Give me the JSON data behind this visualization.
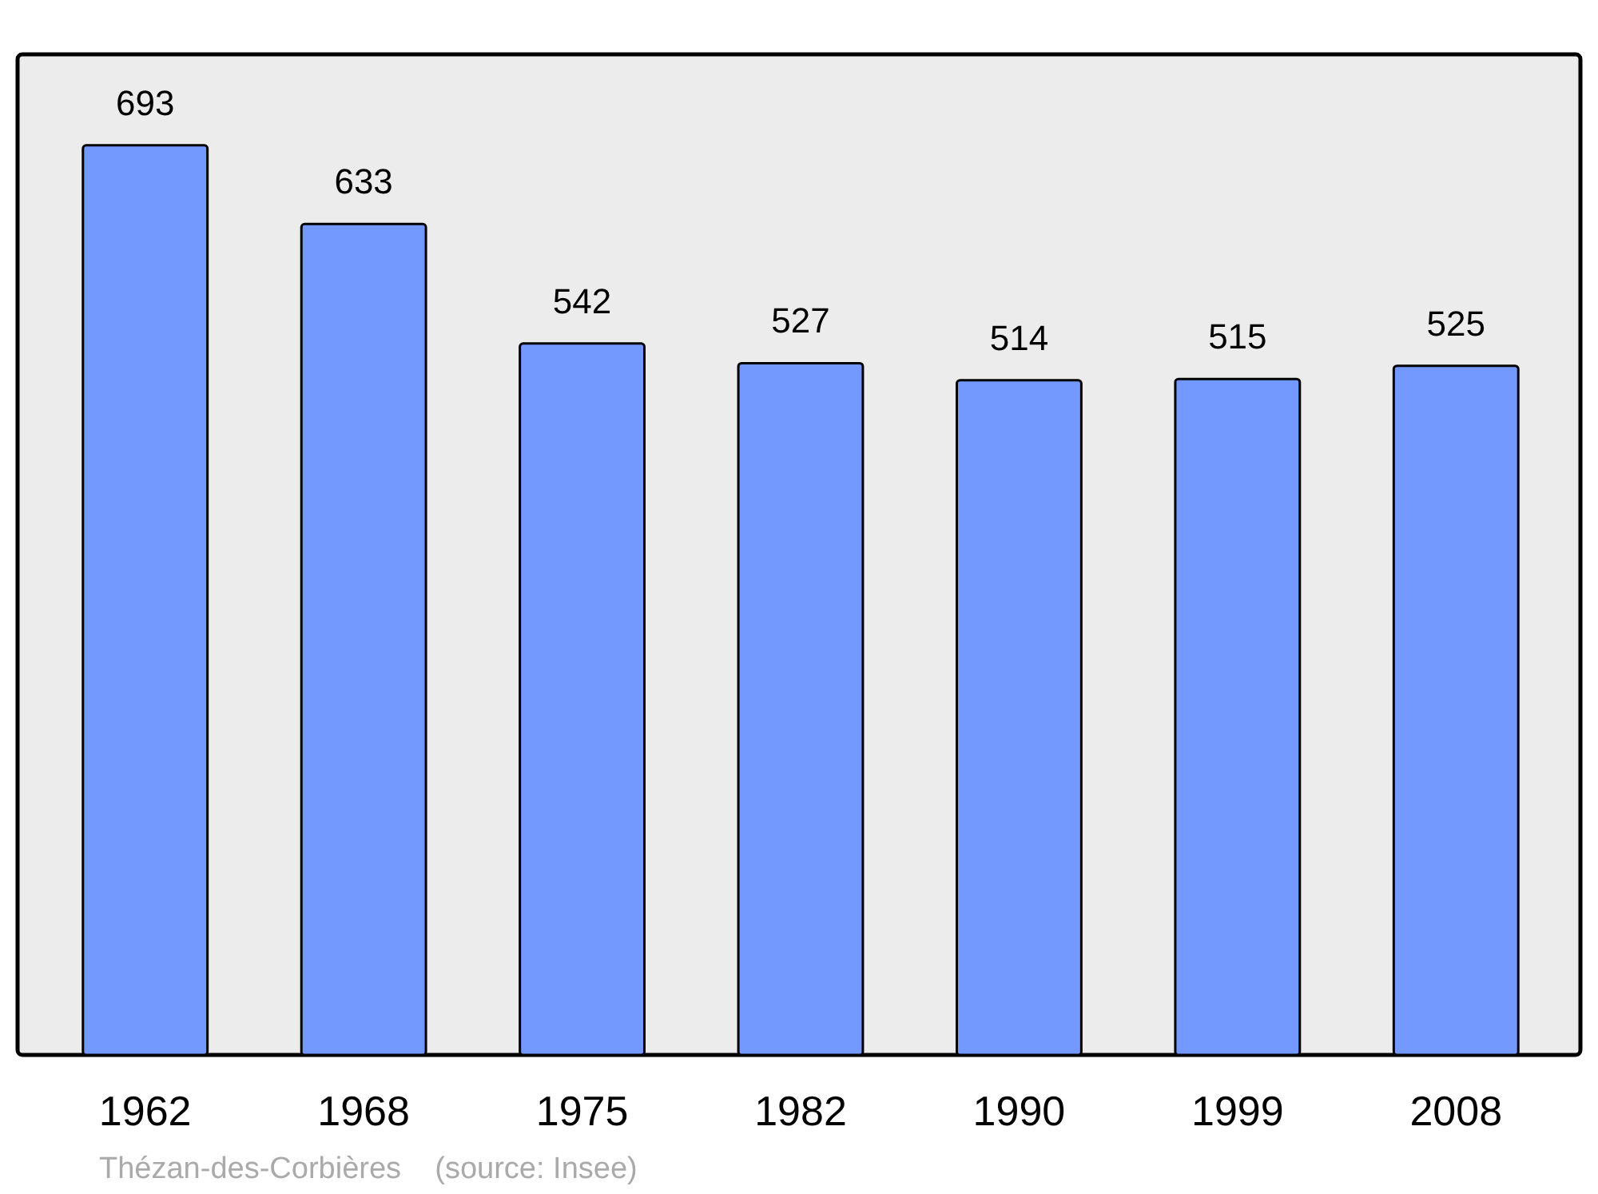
{
  "chart_data": {
    "type": "bar",
    "categories": [
      "1962",
      "1968",
      "1975",
      "1982",
      "1990",
      "1999",
      "2008"
    ],
    "values": [
      693,
      633,
      542,
      527,
      514,
      515,
      525
    ],
    "color": "#7399ff",
    "data_labels": true,
    "annotations": [
      "Thézan-des-Corbières    (source: Insee)"
    ]
  }
}
